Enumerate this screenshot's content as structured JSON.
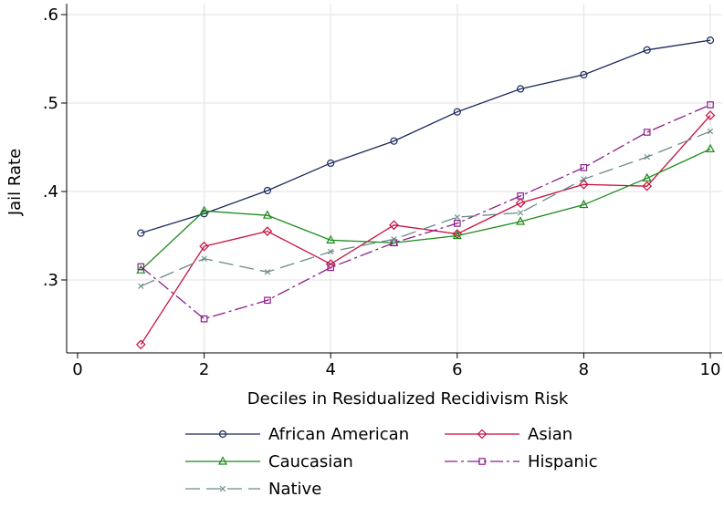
{
  "chart_data": {
    "type": "line",
    "xlabel": "Deciles in Residualized Recidivism Risk",
    "ylabel": "Jail Rate",
    "xlim": [
      0,
      10
    ],
    "ylim": [
      0.215,
      0.62
    ],
    "x_ticks": [
      0,
      2,
      4,
      6,
      8,
      10
    ],
    "x_tick_labels": [
      "0",
      "2",
      "4",
      "6",
      "8",
      "10"
    ],
    "y_ticks": [
      0.3,
      0.4,
      0.5,
      0.6
    ],
    "y_tick_labels": [
      ".3",
      ".4",
      ".5",
      ".6"
    ],
    "grid": "horizontal and vertical at major ticks",
    "legend_position": "bottom",
    "x": [
      1,
      2,
      3,
      4,
      5,
      6,
      7,
      8,
      9,
      10
    ],
    "series": [
      {
        "name": "African American",
        "color": "#1a2a5c",
        "marker": "circle",
        "dash": "solid",
        "values": [
          0.353,
          0.375,
          0.401,
          0.432,
          0.457,
          0.49,
          0.516,
          0.532,
          0.56,
          0.571
        ]
      },
      {
        "name": "Asian",
        "color": "#c8103e",
        "marker": "diamond",
        "dash": "solid",
        "values": [
          0.227,
          0.338,
          0.355,
          0.318,
          0.362,
          0.352,
          0.387,
          0.408,
          0.406,
          0.486
        ]
      },
      {
        "name": "Caucasian",
        "color": "#1a8a1a",
        "marker": "triangle",
        "dash": "solid",
        "values": [
          0.311,
          0.378,
          0.373,
          0.345,
          0.342,
          0.35,
          0.366,
          0.385,
          0.415,
          0.448
        ]
      },
      {
        "name": "Hispanic",
        "color": "#8a1f8a",
        "marker": "square",
        "dash": "dashdot",
        "values": [
          0.315,
          0.256,
          0.277,
          0.314,
          0.342,
          0.364,
          0.395,
          0.427,
          0.467,
          0.498
        ]
      },
      {
        "name": "Native",
        "color": "#6b8a8a",
        "marker": "x",
        "dash": "longdash",
        "values": [
          0.293,
          0.324,
          0.309,
          0.332,
          0.346,
          0.371,
          0.376,
          0.414,
          0.439,
          0.468
        ]
      }
    ]
  }
}
